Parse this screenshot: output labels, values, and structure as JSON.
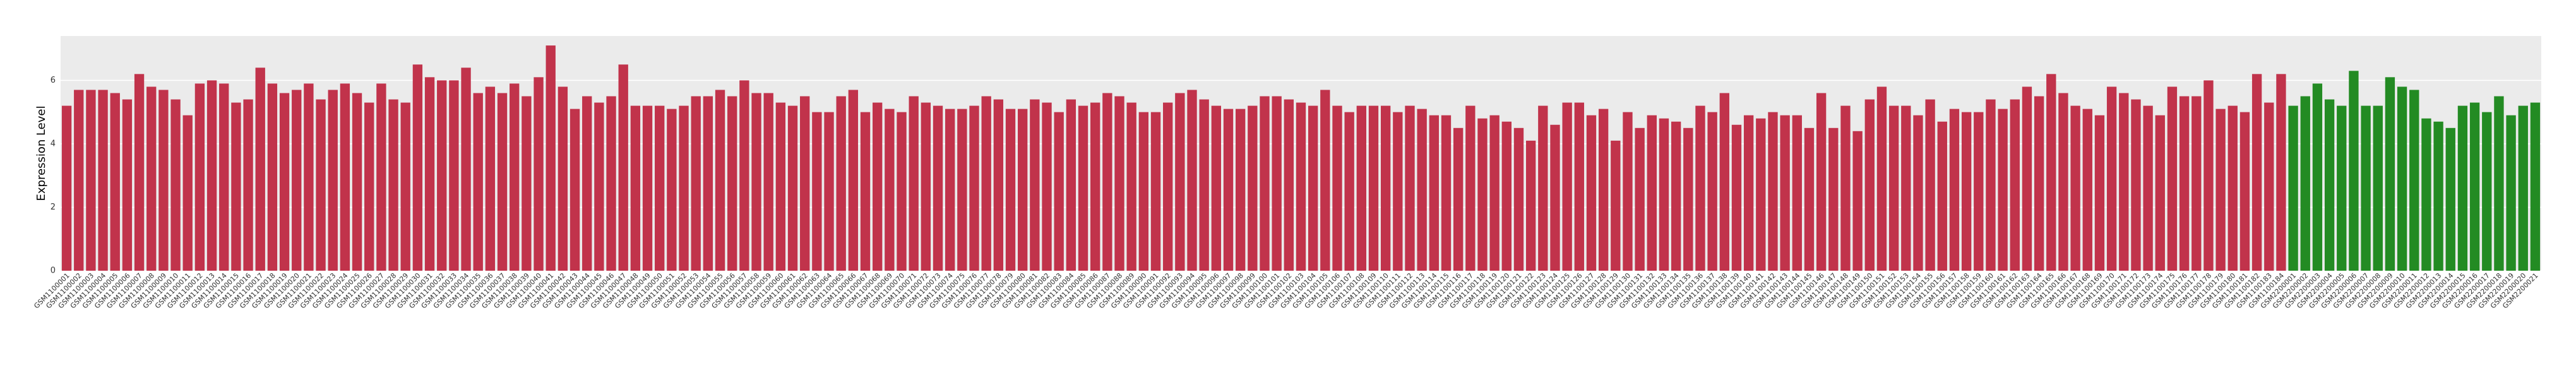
{
  "chart_data": {
    "type": "bar",
    "y_label": "Expression Level",
    "ylim": [
      0,
      7.4
    ],
    "yticks": [
      0,
      2,
      4,
      6
    ],
    "grid": true,
    "series": [
      {
        "color": "#c1334b",
        "categories": [
          "GSM1100001",
          "GSM1100002",
          "GSM1100003",
          "GSM1100004",
          "GSM1100005",
          "GSM1100006",
          "GSM1100007",
          "GSM1100008",
          "GSM1100009",
          "GSM1100010",
          "GSM1100011",
          "GSM1100012",
          "GSM1100013",
          "GSM1100014",
          "GSM1100015",
          "GSM1100016",
          "GSM1100017",
          "GSM1100018",
          "GSM1100019",
          "GSM1100020",
          "GSM1100021",
          "GSM1100022",
          "GSM1100023",
          "GSM1100024",
          "GSM1100025",
          "GSM1100026",
          "GSM1100027",
          "GSM1100028",
          "GSM1100029",
          "GSM1100030",
          "GSM1100031",
          "GSM1100032",
          "GSM1100033",
          "GSM1100034",
          "GSM1100035",
          "GSM1100036",
          "GSM1100037",
          "GSM1100038",
          "GSM1100039",
          "GSM1100040",
          "GSM1100041",
          "GSM1100042",
          "GSM1100043",
          "GSM1100044",
          "GSM1100045",
          "GSM1100046",
          "GSM1100047",
          "GSM1100048",
          "GSM1100049",
          "GSM1100050",
          "GSM1100051",
          "GSM1100052",
          "GSM1100053",
          "GSM1100054",
          "GSM1100055",
          "GSM1100056",
          "GSM1100057",
          "GSM1100058",
          "GSM1100059",
          "GSM1100060",
          "GSM1100061",
          "GSM1100062",
          "GSM1100063",
          "GSM1100064",
          "GSM1100065",
          "GSM1100066",
          "GSM1100067",
          "GSM1100068",
          "GSM1100069",
          "GSM1100070",
          "GSM1100071",
          "GSM1100072",
          "GSM1100073",
          "GSM1100074",
          "GSM1100075",
          "GSM1100076",
          "GSM1100077",
          "GSM1100078",
          "GSM1100079",
          "GSM1100080",
          "GSM1100081",
          "GSM1100082",
          "GSM1100083",
          "GSM1100084",
          "GSM1100085",
          "GSM1100086",
          "GSM1100087",
          "GSM1100088",
          "GSM1100089",
          "GSM1100090",
          "GSM1100091",
          "GSM1100092",
          "GSM1100093",
          "GSM1100094",
          "GSM1100095",
          "GSM1100096",
          "GSM1100097",
          "GSM1100098",
          "GSM1100099",
          "GSM1100100",
          "GSM1100101",
          "GSM1100102",
          "GSM1100103",
          "GSM1100104",
          "GSM1100105",
          "GSM1100106",
          "GSM1100107",
          "GSM1100108",
          "GSM1100109",
          "GSM1100110",
          "GSM1100111",
          "GSM1100112",
          "GSM1100113",
          "GSM1100114",
          "GSM1100115",
          "GSM1100116",
          "GSM1100117",
          "GSM1100118",
          "GSM1100119",
          "GSM1100120",
          "GSM1100121",
          "GSM1100122",
          "GSM1100123",
          "GSM1100124",
          "GSM1100125",
          "GSM1100126",
          "GSM1100127",
          "GSM1100128",
          "GSM1100129",
          "GSM1100130",
          "GSM1100131",
          "GSM1100132",
          "GSM1100133",
          "GSM1100134",
          "GSM1100135",
          "GSM1100136",
          "GSM1100137",
          "GSM1100138",
          "GSM1100139",
          "GSM1100140",
          "GSM1100141",
          "GSM1100142",
          "GSM1100143",
          "GSM1100144",
          "GSM1100145",
          "GSM1100146",
          "GSM1100147",
          "GSM1100148",
          "GSM1100149",
          "GSM1100150",
          "GSM1100151",
          "GSM1100152",
          "GSM1100153",
          "GSM1100154",
          "GSM1100155",
          "GSM1100156",
          "GSM1100157",
          "GSM1100158",
          "GSM1100159",
          "GSM1100160",
          "GSM1100161",
          "GSM1100162",
          "GSM1100163",
          "GSM1100164",
          "GSM1100165",
          "GSM1100166",
          "GSM1100167",
          "GSM1100168",
          "GSM1100169",
          "GSM1100170",
          "GSM1100171",
          "GSM1100172",
          "GSM1100173",
          "GSM1100174",
          "GSM1100175",
          "GSM1100176",
          "GSM1100177",
          "GSM1100178",
          "GSM1100179",
          "GSM1100180",
          "GSM1100181",
          "GSM1100182",
          "GSM1100183",
          "GSM1100184"
        ],
        "values": [
          5.2,
          5.7,
          5.7,
          5.7,
          5.6,
          5.4,
          6.2,
          5.8,
          5.7,
          5.4,
          4.9,
          5.9,
          6.0,
          5.9,
          5.3,
          5.4,
          6.4,
          5.9,
          5.6,
          5.7,
          5.9,
          5.4,
          5.7,
          5.9,
          5.6,
          5.3,
          5.9,
          5.4,
          5.3,
          6.5,
          6.1,
          6.0,
          6.0,
          6.4,
          5.6,
          5.8,
          5.6,
          5.9,
          5.5,
          6.1,
          7.1,
          5.8,
          5.1,
          5.5,
          5.3,
          5.5,
          6.5,
          5.2,
          5.2,
          5.2,
          5.1,
          5.2,
          5.5,
          5.5,
          5.7,
          5.5,
          6.0,
          5.6,
          5.6,
          5.3,
          5.2,
          5.5,
          5.0,
          5.0,
          5.5,
          5.7,
          5.0,
          5.3,
          5.1,
          5.0,
          5.5,
          5.3,
          5.2,
          5.1,
          5.1,
          5.2,
          5.5,
          5.4,
          5.1,
          5.1,
          5.4,
          5.3,
          5.0,
          5.4,
          5.2,
          5.3,
          5.6,
          5.5,
          5.3,
          5.0,
          5.0,
          5.3,
          5.6,
          5.7,
          5.4,
          5.2,
          5.1,
          5.1,
          5.2,
          5.5,
          5.5,
          5.4,
          5.3,
          5.2,
          5.7,
          5.2,
          5.0,
          5.2,
          5.2,
          5.2,
          5.0,
          5.2,
          5.1,
          4.9,
          4.9,
          4.5,
          5.2,
          4.8,
          4.9,
          4.7,
          4.5,
          4.1,
          5.2,
          4.6,
          5.3,
          5.3,
          4.9,
          5.1,
          4.1,
          5.0,
          4.5,
          4.9,
          4.8,
          4.7,
          4.5,
          5.2,
          5.0,
          5.6,
          4.6,
          4.9,
          4.8,
          5.0,
          4.9,
          4.9,
          4.5,
          5.6,
          4.5,
          5.2,
          4.4,
          5.4,
          5.8,
          5.2,
          5.2,
          4.9,
          5.4,
          4.7,
          5.1,
          5.0,
          5.0,
          5.4,
          5.1,
          5.4,
          5.8,
          5.5,
          6.2,
          5.6,
          5.2,
          5.1,
          4.9,
          5.8,
          5.6,
          5.4,
          5.2,
          4.9,
          5.8,
          5.5,
          5.5,
          6.0,
          5.1,
          5.2,
          5.0,
          6.2,
          5.3,
          6.2
        ]
      },
      {
        "color": "#238b23",
        "categories": [
          "GSM2200001",
          "GSM2200002",
          "GSM2200003",
          "GSM2200004",
          "GSM2200005",
          "GSM2200006",
          "GSM2200007",
          "GSM2200008",
          "GSM2200009",
          "GSM2200010",
          "GSM2200011",
          "GSM2200012",
          "GSM2200013",
          "GSM2200014",
          "GSM2200015",
          "GSM2200016",
          "GSM2200017",
          "GSM2200018",
          "GSM2200019",
          "GSM2200020",
          "GSM2200021"
        ],
        "values": [
          5.2,
          5.5,
          5.9,
          5.4,
          5.2,
          6.3,
          5.2,
          5.2,
          6.1,
          5.8,
          5.7,
          4.8,
          4.7,
          4.5,
          5.2,
          5.3,
          5.0,
          5.5,
          4.9,
          5.2,
          5.3
        ]
      }
    ]
  }
}
